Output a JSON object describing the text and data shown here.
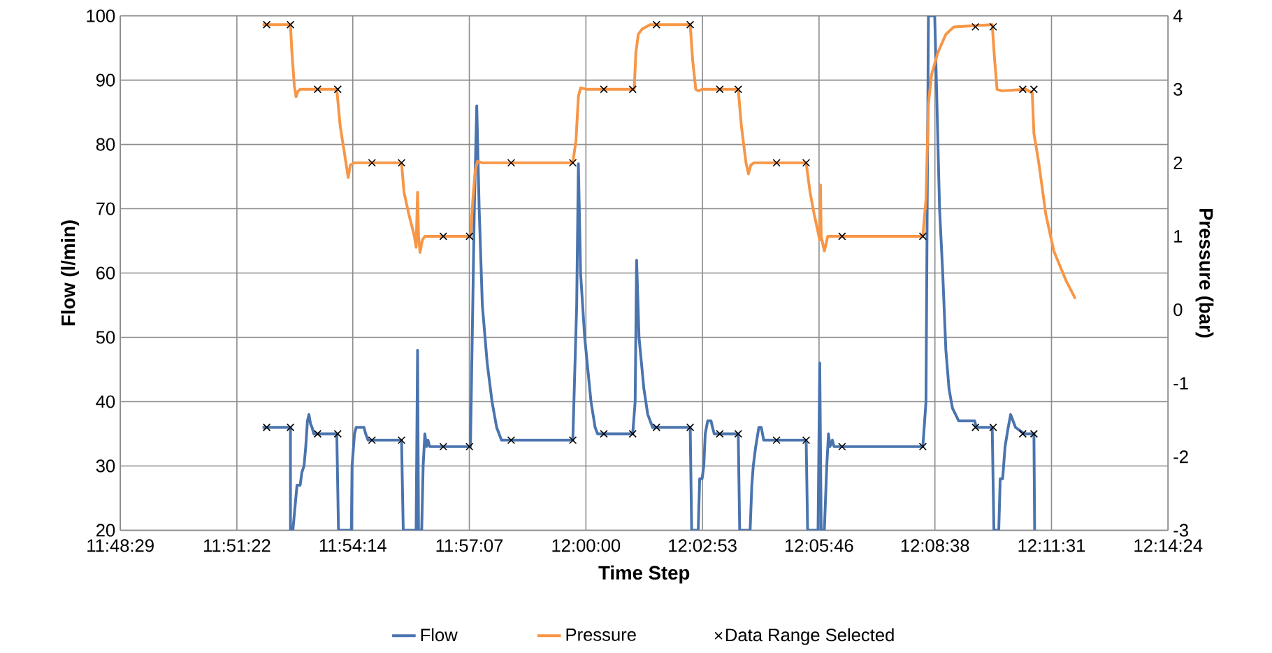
{
  "chart_data": {
    "type": "line",
    "xlabel": "Time Step",
    "ylabel": "Flow (l/min)",
    "y2label": "Pressure (bar)",
    "xlim": [
      11.80806,
      12.24
    ],
    "xticks": [
      {
        "value": 11.80806,
        "label": "11:48:29"
      },
      {
        "value": 11.85611,
        "label": "11:51:22"
      },
      {
        "value": 11.90389,
        "label": "11:54:14"
      },
      {
        "value": 11.95194,
        "label": "11:57:07"
      },
      {
        "value": 12.0,
        "label": "12:00:00"
      },
      {
        "value": 12.04806,
        "label": "12:02:53"
      },
      {
        "value": 12.09611,
        "label": "12:05:46"
      },
      {
        "value": 12.14389,
        "label": "12:08:38"
      },
      {
        "value": 12.19194,
        "label": "12:11:31"
      },
      {
        "value": 12.24,
        "label": "12:14:24"
      }
    ],
    "ylim": [
      20,
      100
    ],
    "yticks": [
      20,
      30,
      40,
      50,
      60,
      70,
      80,
      90,
      100
    ],
    "y2lim": [
      -3,
      4
    ],
    "y2ticks": [
      -3,
      -2,
      -1,
      0,
      1,
      2,
      3,
      4
    ],
    "grid": true,
    "legend": "bottom",
    "series": [
      {
        "name": "Flow",
        "color": "#4a74ae",
        "x": [
          11.8667,
          11.8782,
          11.8782,
          11.8792,
          11.8809,
          11.8822,
          11.8829,
          11.8838,
          11.8845,
          11.8852,
          11.8858,
          11.8865,
          11.8871,
          11.8878,
          11.8973,
          11.898,
          11.9033,
          11.9036,
          11.9046,
          11.9053,
          11.9085,
          11.9092,
          11.9102,
          11.924,
          11.9247,
          11.93,
          11.9306,
          11.931,
          11.9323,
          11.9329,
          11.9336,
          11.9343,
          11.9349,
          11.9356,
          11.9524,
          11.954,
          11.955,
          11.956,
          11.9573,
          11.9593,
          11.9613,
          11.9632,
          11.9652,
          11.9946,
          11.9962,
          11.9969,
          11.9978,
          11.9995,
          12.0008,
          12.0021,
          12.0038,
          12.0048,
          12.0193,
          12.0203,
          12.0209,
          12.0219,
          12.0239,
          12.0255,
          12.0275,
          12.0291,
          12.043,
          12.0436,
          12.0463,
          12.0469,
          12.0479,
          12.0486,
          12.0492,
          12.0502,
          12.0516,
          12.0522,
          12.0529,
          12.0628,
          12.0634,
          12.0677,
          12.0684,
          12.069,
          12.07,
          12.0713,
          12.0723,
          12.0733,
          12.0908,
          12.0914,
          12.0957,
          12.0964,
          12.097,
          12.0983,
          12.0993,
          12.1,
          12.1006,
          12.1016,
          12.1023,
          12.1389,
          12.1402,
          12.1412,
          12.1438,
          12.1448,
          12.1458,
          12.1471,
          12.1484,
          12.1497,
          12.1511,
          12.1524,
          12.1537,
          12.1603,
          12.1609,
          12.1675,
          12.1682,
          12.1702,
          12.1708,
          12.1718,
          12.1728,
          12.1741,
          12.1751,
          12.1761,
          12.1771,
          12.1807,
          12.1847,
          12.185
        ],
        "values": [
          36,
          36,
          20,
          20,
          27,
          27,
          29,
          30,
          33,
          37,
          38,
          36.5,
          36,
          35,
          35,
          20,
          20,
          30,
          35,
          36,
          36,
          35,
          34,
          34,
          20,
          20,
          48,
          20,
          20,
          30,
          35,
          33,
          34,
          33,
          33,
          70,
          86,
          70,
          55,
          46,
          40,
          36,
          34,
          34,
          55,
          77,
          60,
          50,
          45,
          40,
          36,
          35,
          35,
          40,
          62,
          50,
          42,
          38,
          36,
          36,
          36,
          20,
          20,
          28,
          28,
          30,
          35,
          37,
          37,
          36,
          35,
          35,
          20,
          20,
          27,
          30,
          33,
          36,
          36,
          34,
          34,
          20,
          20,
          46,
          20,
          20,
          30,
          35,
          33,
          34,
          33,
          33,
          40,
          100,
          100,
          85,
          70,
          60,
          48,
          42,
          39,
          38,
          37,
          37,
          36,
          36,
          20,
          20,
          28,
          28,
          33,
          36,
          38,
          37,
          36,
          35,
          35,
          20
        ]
      },
      {
        "name": "Pressure",
        "color": "#f79646",
        "axis": "y2",
        "x": [
          11.8667,
          11.8782,
          11.8788,
          11.8798,
          11.8805,
          11.8812,
          11.8822,
          11.8973,
          11.8987,
          11.9006,
          11.902,
          11.9029,
          11.9046,
          11.924,
          11.925,
          11.927,
          11.9293,
          11.93,
          11.9306,
          11.931,
          11.9316,
          11.9326,
          11.9336,
          11.9524,
          11.9534,
          11.9544,
          11.9553,
          11.9573,
          11.9946,
          11.9959,
          11.9969,
          11.9978,
          12.0002,
          12.0199,
          12.0206,
          12.0216,
          12.0232,
          12.0265,
          12.043,
          12.044,
          12.0453,
          12.0463,
          12.0479,
          12.0628,
          12.0641,
          12.066,
          12.067,
          12.068,
          12.0693,
          12.0908,
          12.0924,
          12.0941,
          12.0964,
          12.0967,
          12.097,
          12.0983,
          12.0997,
          12.1389,
          12.1402,
          12.1412,
          12.1425,
          12.1451,
          12.1484,
          12.1517,
          12.1675,
          12.1685,
          12.1695,
          12.1715,
          12.1814,
          12.184,
          12.1847,
          12.1867,
          12.1896,
          12.1929,
          12.1979,
          12.2018
        ],
        "values": [
          3.88,
          3.88,
          3.5,
          3.05,
          2.9,
          2.97,
          3.0,
          3.0,
          2.5,
          2.1,
          1.8,
          1.97,
          2.0,
          2.0,
          1.6,
          1.3,
          1.0,
          0.85,
          1.6,
          1.0,
          0.78,
          0.95,
          1.0,
          1.0,
          1.5,
          1.9,
          2.02,
          2.0,
          2.0,
          2.3,
          2.9,
          3.02,
          3.0,
          3.0,
          3.5,
          3.75,
          3.82,
          3.88,
          3.88,
          3.4,
          3.0,
          2.98,
          3.0,
          3.0,
          2.5,
          2.0,
          1.85,
          1.97,
          2.0,
          2.0,
          1.6,
          1.3,
          0.95,
          1.7,
          1.0,
          0.8,
          1.0,
          1.0,
          1.5,
          2.8,
          3.2,
          3.5,
          3.75,
          3.85,
          3.88,
          3.4,
          3.0,
          2.98,
          3.0,
          2.95,
          2.4,
          2.0,
          1.3,
          0.8,
          0.4,
          0.15
        ]
      },
      {
        "name": "Data Range Selected",
        "type": "scatter",
        "marker": "cross",
        "color": "#000000",
        "x": [
          11.8684,
          11.8782,
          11.8894,
          11.8977,
          11.9118,
          11.924,
          11.9412,
          11.952,
          11.9692,
          11.9946,
          12.0074,
          12.0193,
          12.0291,
          12.043,
          12.0552,
          12.0628,
          12.0786,
          12.0908,
          12.1056,
          12.1389,
          12.1606,
          12.1679,
          12.1801,
          12.1847
        ],
        "values": [
          36,
          36,
          35,
          35,
          34,
          34,
          33,
          33,
          34,
          34,
          35,
          35,
          36,
          36,
          35,
          35,
          34,
          34,
          33,
          33,
          36,
          36,
          35,
          35
        ]
      },
      {
        "type": "scatter",
        "marker": "cross",
        "color": "#000000",
        "axis": "y2",
        "x": [
          11.8684,
          11.8782,
          11.8894,
          11.8977,
          11.9118,
          11.924,
          11.9412,
          11.952,
          11.9692,
          11.9946,
          12.0074,
          12.0193,
          12.0291,
          12.043,
          12.0552,
          12.0628,
          12.0786,
          12.0908,
          12.1056,
          12.1389,
          12.1606,
          12.1679,
          12.1801,
          12.1847
        ],
        "values": [
          3.88,
          3.88,
          3.0,
          3.0,
          2.0,
          2.0,
          1.0,
          1.0,
          2.0,
          2.0,
          3.0,
          3.0,
          3.88,
          3.88,
          3.0,
          3.0,
          2.0,
          2.0,
          1.0,
          1.0,
          3.85,
          3.85,
          3.0,
          3.0
        ]
      }
    ]
  }
}
